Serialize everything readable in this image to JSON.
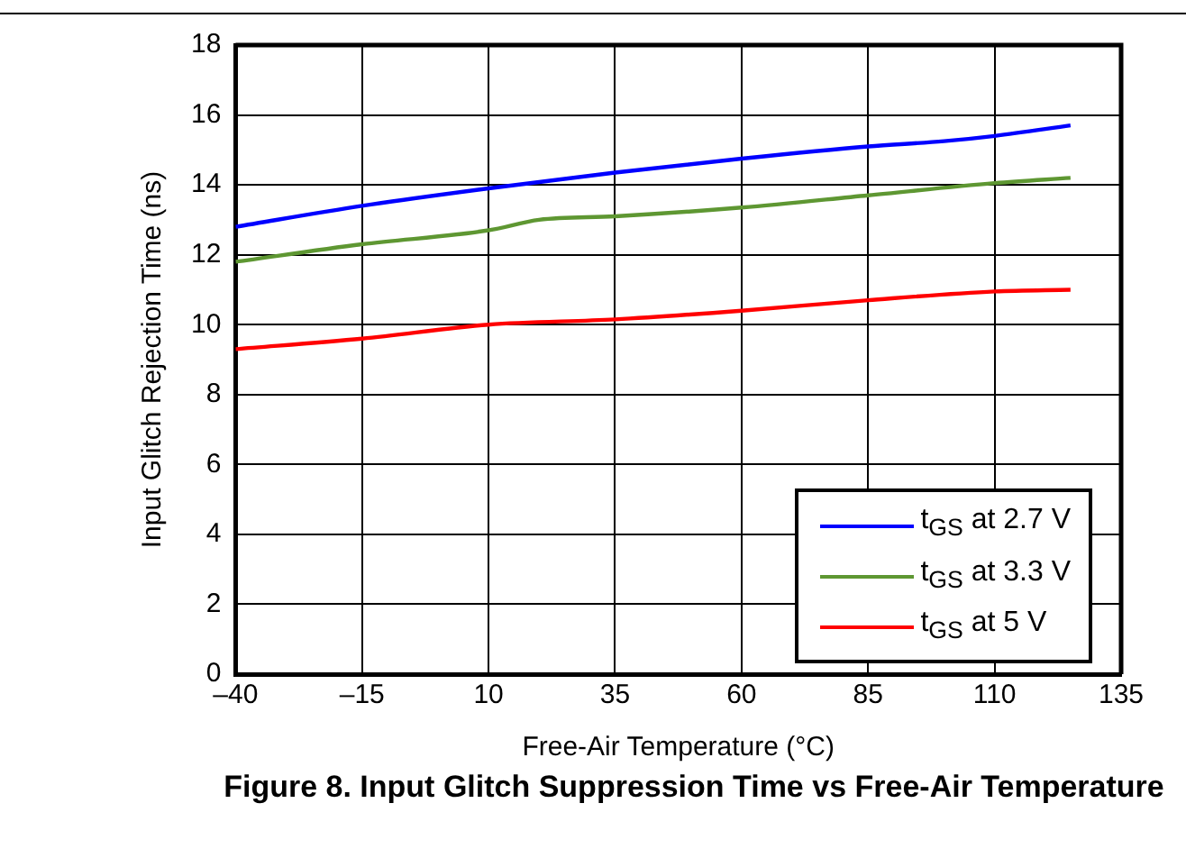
{
  "chart_data": {
    "type": "line",
    "title": "Figure 8. Input Glitch Suppression Time vs Free-Air Temperature",
    "xlabel": "Free-Air Temperature (°C)",
    "ylabel": "Input Glitch Rejection Time (ns)",
    "xlim": [
      -40,
      135
    ],
    "xticks": [
      {
        "value": -40,
        "label": "–40"
      },
      {
        "value": -15,
        "label": "–15"
      },
      10,
      35,
      60,
      85,
      110,
      135
    ],
    "ylim": [
      0,
      18
    ],
    "yticks": [
      0,
      2,
      4,
      6,
      8,
      10,
      12,
      14,
      16,
      18
    ],
    "grid": true,
    "legend": "bottom right",
    "marker": "none",
    "line_style": "solid",
    "series": [
      {
        "name": "t$_{GS}$ at 2.7 V",
        "color": "#0000ff",
        "x": [
          -40,
          -15,
          10,
          35,
          60,
          85,
          100,
          110,
          125
        ],
        "values": [
          12.8,
          13.4,
          13.9,
          14.35,
          14.75,
          15.1,
          15.25,
          15.4,
          15.7
        ]
      },
      {
        "name": "t$_{GS}$ at 3.3 V",
        "color": "#5e9732",
        "x": [
          -40,
          -15,
          10,
          20,
          35,
          60,
          85,
          110,
          125
        ],
        "values": [
          11.8,
          12.3,
          12.7,
          13.0,
          13.1,
          13.35,
          13.7,
          14.05,
          14.2
        ]
      },
      {
        "name": "t$_{GS}$ at 5 V",
        "color": "#ff0000",
        "x": [
          -40,
          -15,
          10,
          35,
          60,
          85,
          110,
          125
        ],
        "values": [
          9.3,
          9.6,
          10.0,
          10.15,
          10.4,
          10.7,
          10.95,
          11.0
        ]
      }
    ]
  }
}
